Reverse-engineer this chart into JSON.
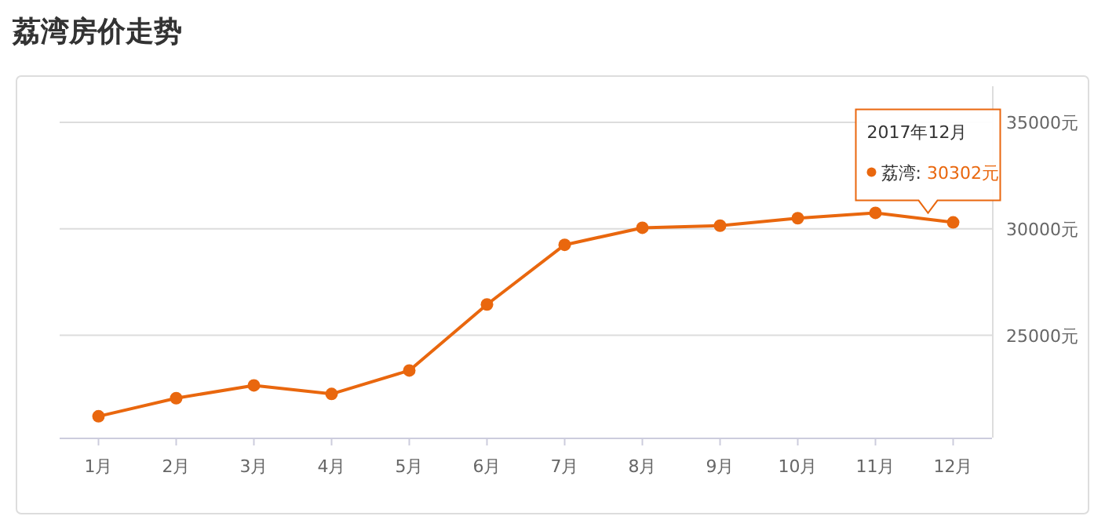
{
  "chart_data": {
    "type": "line",
    "title": "荔湾房价走势",
    "categories": [
      "1月",
      "2月",
      "3月",
      "4月",
      "5月",
      "6月",
      "7月",
      "8月",
      "9月",
      "10月",
      "11月",
      "12月"
    ],
    "series": [
      {
        "color": "#e9670e",
        "values": [
          21200,
          22050,
          22650,
          22250,
          23350,
          26450,
          29250,
          30050,
          30150,
          30500,
          30750,
          30302
        ]
      }
    ],
    "ylim": [
      20200,
      35000
    ],
    "yticks": [
      {
        "value": 25000,
        "label": "25000元"
      },
      {
        "value": 30000,
        "label": "30000元"
      },
      {
        "value": 35000,
        "label": "35000元"
      }
    ],
    "annotations": [
      "2017年12月",
      "荔湾:  30302元"
    ],
    "grid": "y",
    "marker": "circle",
    "line_style": "solid"
  }
}
